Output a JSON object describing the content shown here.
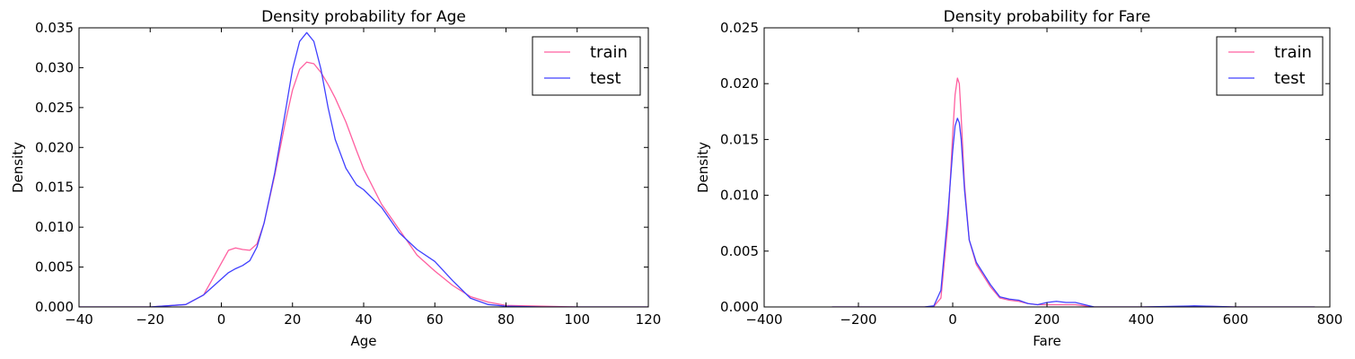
{
  "chart_data": [
    {
      "type": "line",
      "title": "Density probability for Age",
      "xlabel": "Age",
      "ylabel": "Density",
      "xlim": [
        -40,
        120
      ],
      "ylim": [
        0,
        0.035
      ],
      "xticks": [
        "−40",
        "−20",
        "0",
        "20",
        "40",
        "60",
        "80",
        "100",
        "120"
      ],
      "yticks": [
        "0.000",
        "0.005",
        "0.010",
        "0.015",
        "0.020",
        "0.025",
        "0.030",
        "0.035"
      ],
      "grid": false,
      "legend_position": "top-right",
      "series": [
        {
          "name": "train",
          "color": "#ff5fa0",
          "x": [
            -40,
            -20,
            -10,
            -5,
            0,
            2,
            4,
            6,
            8,
            10,
            12,
            15,
            18,
            20,
            22,
            24,
            26,
            28,
            30,
            32,
            35,
            38,
            40,
            45,
            50,
            55,
            60,
            65,
            70,
            75,
            80,
            90,
            100,
            110,
            120
          ],
          "y": [
            0.0,
            0.0,
            0.0003,
            0.0015,
            0.0055,
            0.0071,
            0.0074,
            0.0072,
            0.0071,
            0.0079,
            0.0105,
            0.0165,
            0.0232,
            0.0272,
            0.0298,
            0.0307,
            0.0305,
            0.0294,
            0.0279,
            0.0262,
            0.0232,
            0.0196,
            0.0173,
            0.0129,
            0.0097,
            0.0065,
            0.0045,
            0.0027,
            0.0013,
            0.0006,
            0.0002,
            0.0001,
            0.0,
            0.0,
            0.0
          ]
        },
        {
          "name": "test",
          "color": "#4040ff",
          "x": [
            -40,
            -20,
            -10,
            -5,
            0,
            2,
            4,
            6,
            8,
            10,
            12,
            15,
            18,
            20,
            22,
            24,
            26,
            28,
            30,
            32,
            35,
            38,
            40,
            45,
            50,
            55,
            60,
            65,
            70,
            75,
            80,
            90,
            100,
            110,
            120
          ],
          "y": [
            0.0,
            0.0,
            0.0003,
            0.0015,
            0.0035,
            0.0043,
            0.0048,
            0.0052,
            0.0058,
            0.0075,
            0.0105,
            0.0168,
            0.0245,
            0.0298,
            0.0333,
            0.0344,
            0.0333,
            0.0298,
            0.025,
            0.021,
            0.0174,
            0.0153,
            0.0147,
            0.0125,
            0.0093,
            0.0072,
            0.0057,
            0.0033,
            0.0011,
            0.0003,
            0.0001,
            0.0,
            0.0,
            0.0,
            0.0
          ]
        }
      ]
    },
    {
      "type": "line",
      "title": "Density probability for Fare",
      "xlabel": "Fare",
      "ylabel": "Density",
      "xlim": [
        -400,
        800
      ],
      "ylim": [
        0,
        0.025
      ],
      "xticks": [
        "−400",
        "−200",
        "0",
        "200",
        "400",
        "600",
        "800"
      ],
      "yticks": [
        "0.000",
        "0.005",
        "0.010",
        "0.015",
        "0.020",
        "0.025"
      ],
      "grid": false,
      "legend_position": "top-right",
      "series": [
        {
          "name": "train",
          "color": "#ff5fa0",
          "x": [
            -256,
            -150,
            -60,
            -40,
            -25,
            -10,
            0,
            5,
            10,
            14,
            18,
            25,
            35,
            50,
            65,
            80,
            100,
            120,
            140,
            160,
            180,
            200,
            220,
            240,
            260,
            280,
            300,
            400,
            500,
            512,
            600,
            700,
            768
          ],
          "y": [
            0.0,
            0.0,
            0.0,
            5e-05,
            0.0008,
            0.0075,
            0.0155,
            0.019,
            0.0205,
            0.02,
            0.017,
            0.011,
            0.006,
            0.0038,
            0.0028,
            0.0018,
            0.0008,
            0.0006,
            0.0005,
            0.0003,
            0.0002,
            0.0002,
            0.0002,
            0.0002,
            0.0002,
            0.0001,
            0.0,
            0.0,
            5e-05,
            8e-05,
            0.0,
            0.0,
            0.0
          ]
        },
        {
          "name": "test",
          "color": "#4040ff",
          "x": [
            -256,
            -150,
            -60,
            -40,
            -25,
            -10,
            0,
            5,
            10,
            14,
            18,
            25,
            35,
            50,
            65,
            80,
            100,
            120,
            140,
            160,
            180,
            200,
            220,
            240,
            260,
            280,
            300,
            400,
            500,
            512,
            600,
            700,
            768
          ],
          "y": [
            0.0,
            0.0,
            0.0,
            0.0001,
            0.0015,
            0.0085,
            0.014,
            0.0162,
            0.0169,
            0.0165,
            0.015,
            0.0105,
            0.006,
            0.004,
            0.003,
            0.002,
            0.0009,
            0.0007,
            0.0006,
            0.0003,
            0.0002,
            0.0004,
            0.0005,
            0.0004,
            0.0004,
            0.0002,
            0.0,
            0.0,
            8e-05,
            0.0001,
            0.0,
            0.0,
            0.0
          ]
        }
      ]
    }
  ]
}
